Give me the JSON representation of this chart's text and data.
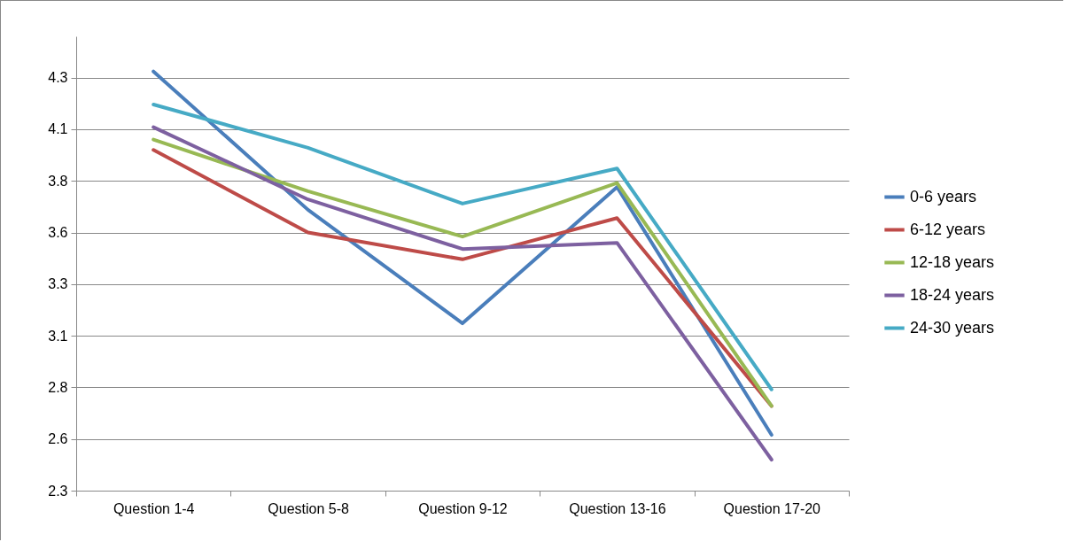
{
  "chart_data": {
    "type": "line",
    "categories": [
      "Question 1-4",
      "Question 5-8",
      "Question 9-12",
      "Question 13-16",
      "Question 17-20"
    ],
    "ylim": [
      2.3,
      4.5
    ],
    "yticks": [
      2.3,
      {
        "value": 2.55,
        "label": "2.6"
      },
      2.8,
      {
        "value": 3.05,
        "label": "3.1"
      },
      3.3,
      {
        "value": 3.55,
        "label": "3.6"
      },
      3.8,
      {
        "value": 4.05,
        "label": "4.1"
      },
      4.3
    ],
    "grid": "y",
    "legend": "right",
    "marker": "none",
    "line_style": "solid",
    "series": [
      {
        "name": "0-6 years",
        "color": "#4a7ebb",
        "values": [
          4.33,
          3.66,
          3.11,
          3.77,
          2.57
        ]
      },
      {
        "name": "6-12 years",
        "color": "#be4b48",
        "values": [
          3.95,
          3.55,
          3.42,
          3.62,
          2.71
        ]
      },
      {
        "name": "12-18 years",
        "color": "#98b954",
        "values": [
          4.0,
          3.75,
          3.53,
          3.79,
          2.71
        ]
      },
      {
        "name": "18-24 years",
        "color": "#7d60a0",
        "values": [
          4.06,
          3.71,
          3.47,
          3.5,
          2.45
        ]
      },
      {
        "name": "24-30 years",
        "color": "#46aac5",
        "values": [
          4.17,
          3.96,
          3.69,
          3.86,
          2.79
        ]
      }
    ]
  }
}
